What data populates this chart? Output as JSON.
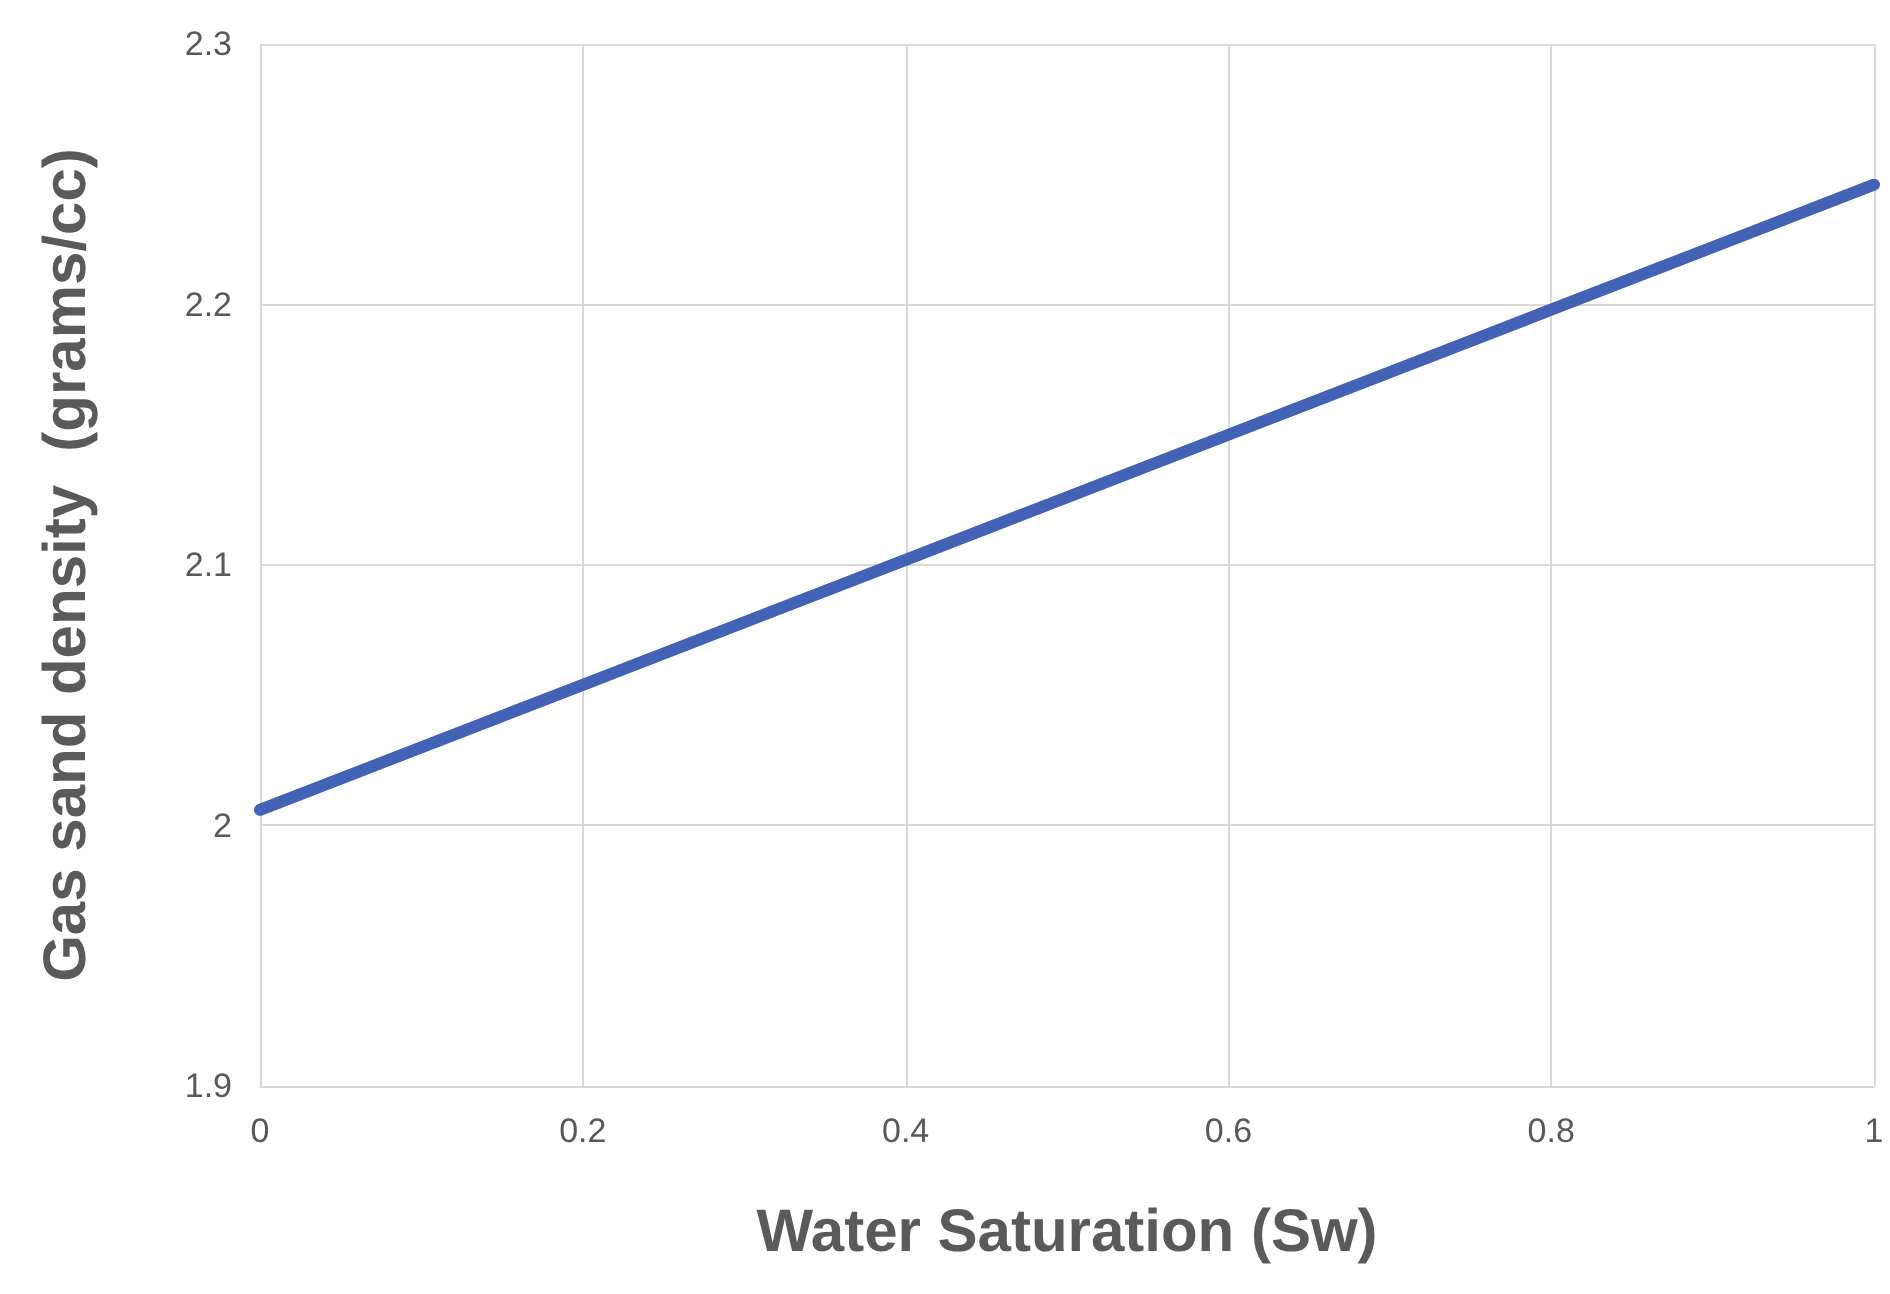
{
  "chart_data": {
    "type": "line",
    "xlabel": "Water Saturation (Sw)",
    "ylabel": "Gas sand density  (grams/cc)",
    "x": [
      0,
      0.2,
      0.4,
      0.6,
      0.8,
      1
    ],
    "series": [
      {
        "color": "#4262b5",
        "values": [
          2.006,
          2.054,
          2.102,
          2.15,
          2.198,
          2.246
        ]
      }
    ],
    "xlim": [
      0,
      1
    ],
    "xticks": [
      0,
      0.2,
      0.4,
      0.6,
      0.8,
      1
    ],
    "ylim": [
      1.9,
      2.3
    ],
    "yticks": [
      1.9,
      2,
      2.1,
      2.2,
      2.3
    ],
    "grid": true,
    "marker": "none",
    "line_style": "solid"
  }
}
